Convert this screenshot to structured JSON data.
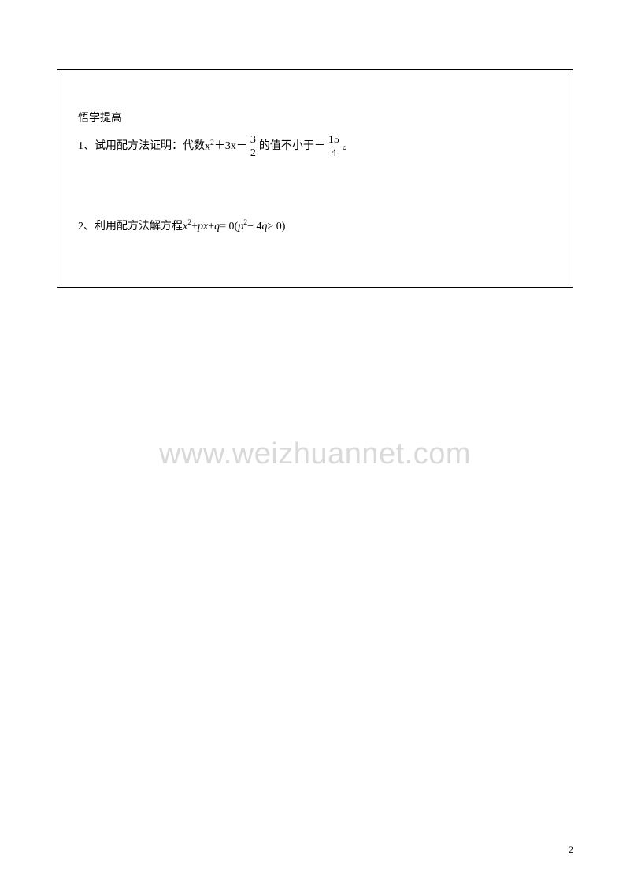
{
  "section_title": "悟学提高",
  "problem1": {
    "label": "1、试用配方法证明：代数 ",
    "expr_x2": "x",
    "expr_plus1": "＋3x－",
    "frac1_num": "3",
    "frac1_den": "2",
    "mid": " 的值不小于－",
    "frac2_num": "15",
    "frac2_den": "4",
    "end": " 。"
  },
  "problem2": {
    "label": "2、利用配方法解方程 ",
    "x": "x",
    "px": "px",
    "q": "q",
    "eq": " = 0(",
    "p": "p",
    "minus4q": " − 4",
    "q2": "q",
    "ge": " ≥ 0)",
    "plus1": " + ",
    "plus2": " + "
  },
  "watermark": "www.weizhuannet.com",
  "pagenum": "2"
}
